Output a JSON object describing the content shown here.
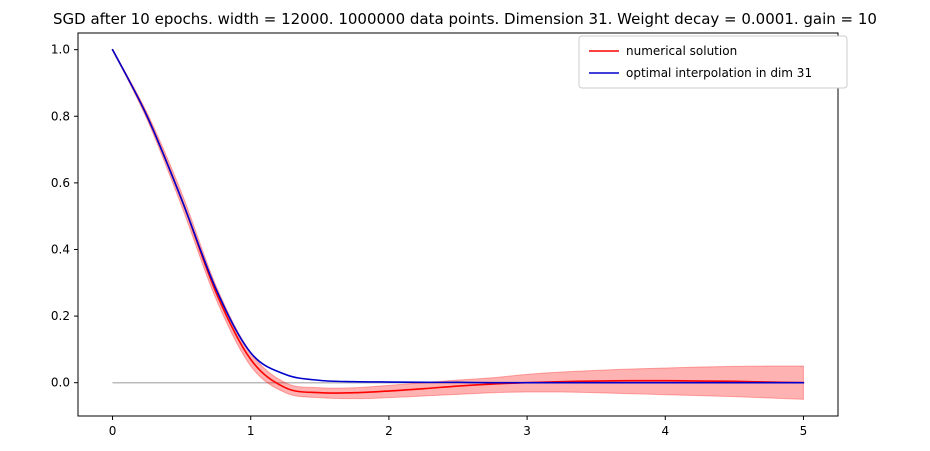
{
  "chart_data": {
    "type": "line",
    "title": "SGD after 10 epochs. width = 12000. 1000000 data points. Dimension 31. Weight decay = 0.0001. gain = 10",
    "xlabel": "",
    "ylabel": "",
    "xlim": [
      -0.25,
      5.25
    ],
    "ylim": [
      -0.1,
      1.05
    ],
    "x_ticks": [
      "0",
      "1",
      "2",
      "3",
      "4",
      "5"
    ],
    "y_ticks": [
      "0.0",
      "0.2",
      "0.4",
      "0.6",
      "0.8",
      "1.0"
    ],
    "x": [
      0,
      0.25,
      0.5,
      0.75,
      1.0,
      1.25,
      1.5,
      1.75,
      2.0,
      2.25,
      2.5,
      2.75,
      3.0,
      3.25,
      3.5,
      3.75,
      4.0,
      4.25,
      4.5,
      4.75,
      5.0
    ],
    "series": [
      {
        "name": "numerical solution",
        "color": "#ff0000",
        "values": [
          1.0,
          0.8,
          0.55,
          0.27,
          0.07,
          -0.015,
          -0.03,
          -0.03,
          -0.025,
          -0.018,
          -0.01,
          -0.004,
          0.0,
          0.003,
          0.005,
          0.006,
          0.006,
          0.005,
          0.004,
          0.002,
          0.0
        ],
        "band_lower": [
          1.0,
          0.79,
          0.53,
          0.25,
          0.05,
          -0.03,
          -0.045,
          -0.048,
          -0.045,
          -0.04,
          -0.035,
          -0.03,
          -0.028,
          -0.028,
          -0.03,
          -0.033,
          -0.036,
          -0.039,
          -0.042,
          -0.046,
          -0.05
        ],
        "band_upper": [
          1.0,
          0.81,
          0.57,
          0.29,
          0.09,
          0.0,
          -0.015,
          -0.015,
          -0.008,
          0.0,
          0.008,
          0.015,
          0.025,
          0.032,
          0.037,
          0.041,
          0.044,
          0.047,
          0.049,
          0.05,
          0.05
        ]
      },
      {
        "name": "optimal interpolation in dim 31",
        "color": "#0000cc",
        "values": [
          1.0,
          0.8,
          0.55,
          0.28,
          0.09,
          0.025,
          0.007,
          0.003,
          0.002,
          0.001,
          0.001,
          0.0,
          0.0,
          0.0,
          0.0,
          0.0,
          0.0,
          0.0,
          0.0,
          0.0,
          0.0
        ]
      }
    ],
    "reference_line": {
      "y": 0.0,
      "x_range": [
        0,
        5
      ],
      "color": "#bbbbbb"
    },
    "band_color": "#ff0000",
    "legend_position": "top-right",
    "grid": false
  }
}
